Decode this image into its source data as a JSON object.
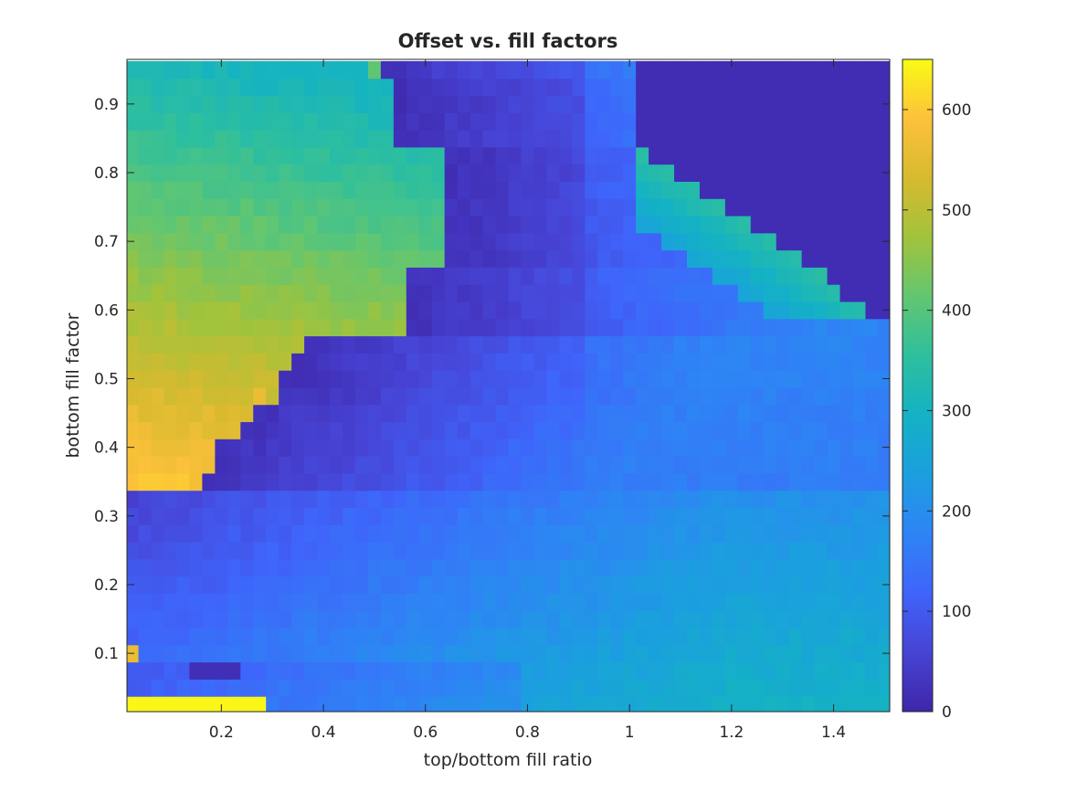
{
  "chart_data": {
    "type": "heatmap",
    "title": "Offset vs. fill factors",
    "xlabel": "top/bottom fill ratio",
    "ylabel": "bottom fill factor",
    "xlim": [
      0.015,
      1.51
    ],
    "ylim": [
      0.015,
      0.965
    ],
    "x_ticks": [
      0.2,
      0.4,
      0.6,
      0.8,
      1,
      1.2,
      1.4
    ],
    "x_tick_labels": [
      "0.2",
      "0.4",
      "0.6",
      "0.8",
      "1",
      "1.2",
      "1.4"
    ],
    "y_ticks": [
      0.1,
      0.2,
      0.3,
      0.4,
      0.5,
      0.6,
      0.7,
      0.8,
      0.9
    ],
    "y_tick_labels": [
      "0.1",
      "0.2",
      "0.3",
      "0.4",
      "0.5",
      "0.6",
      "0.7",
      "0.8",
      "0.9"
    ],
    "colormap": "parula",
    "colormap_stops": [
      "#3e26a8",
      "#4743d4",
      "#3f64fa",
      "#2e84f5",
      "#1b9fdf",
      "#14b2c4",
      "#2ebf9e",
      "#62c671",
      "#a1c33c",
      "#d7ba2f",
      "#fdc13a",
      "#f9fb15"
    ],
    "clim": [
      0,
      650
    ],
    "colorbar_ticks": [
      0,
      100,
      200,
      300,
      400,
      500,
      600
    ],
    "colorbar_tick_labels": [
      "0",
      "100",
      "200",
      "300",
      "400",
      "500",
      "600"
    ],
    "grid": false,
    "grid_resolution": {
      "x_start": 0.025,
      "x_step": 0.025,
      "x_count": 60,
      "y_start": 0.025,
      "y_step": 0.025,
      "y_count": 38
    },
    "overrides": [
      {
        "x": [
          0.02,
          0.29
        ],
        "y": [
          0.015,
          0.04
        ],
        "value": 645
      },
      {
        "x": [
          0.02,
          0.05
        ],
        "y": [
          0.09,
          0.11
        ],
        "value": 560
      },
      {
        "x": [
          0.14,
          0.24
        ],
        "y": [
          0.065,
          0.09
        ],
        "value": 20
      },
      {
        "x": [
          0.48,
          0.5
        ],
        "y": [
          0.94,
          0.965
        ],
        "value": 20
      },
      {
        "x": [
          0.5,
          0.515
        ],
        "y": [
          0.94,
          0.965
        ],
        "value": 410
      },
      {
        "x": [
          0.275,
          0.29
        ],
        "y": [
          0.465,
          0.49
        ],
        "value": 560
      },
      {
        "x": [
          0.255,
          0.275
        ],
        "y": [
          0.465,
          0.49
        ],
        "value": 30
      }
    ]
  }
}
